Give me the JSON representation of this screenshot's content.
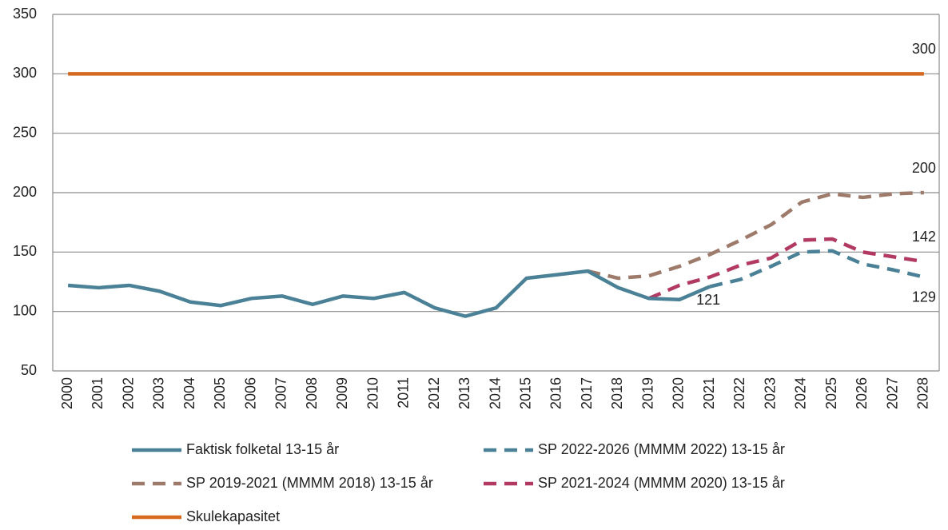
{
  "chart_data": {
    "type": "line",
    "categories": [
      "2000",
      "2001",
      "2002",
      "2003",
      "2004",
      "2005",
      "2006",
      "2007",
      "2008",
      "2009",
      "2010",
      "2011",
      "2012",
      "2013",
      "2014",
      "2015",
      "2016",
      "2017",
      "2018",
      "2019",
      "2020",
      "2021",
      "2022",
      "2023",
      "2024",
      "2025",
      "2026",
      "2027",
      "2028"
    ],
    "ylim": [
      50,
      350
    ],
    "yticks": [
      50,
      100,
      150,
      200,
      250,
      300,
      350
    ],
    "grid": true,
    "series": [
      {
        "name": "Faktisk folketal 13-15 år",
        "color": "#4a8196",
        "dash": false,
        "labeled": [
          21
        ],
        "values": [
          122,
          120,
          122,
          117,
          108,
          105,
          111,
          113,
          106,
          113,
          111,
          116,
          103,
          96,
          103,
          128,
          131,
          134,
          120,
          111,
          110,
          121,
          null,
          null,
          null,
          null,
          null,
          null,
          null
        ]
      },
      {
        "name": "SP 2022-2026 (MMMM 2022) 13-15 år",
        "color": "#4a8196",
        "dash": true,
        "labeled": [
          28
        ],
        "values": [
          null,
          null,
          null,
          null,
          null,
          null,
          null,
          null,
          null,
          null,
          null,
          null,
          null,
          null,
          null,
          null,
          null,
          null,
          null,
          null,
          null,
          121,
          127,
          138,
          150,
          151,
          140,
          135,
          129
        ]
      },
      {
        "name": "SP 2019-2021 (MMMM 2018) 13-15 år",
        "color": "#9e7a6a",
        "dash": true,
        "labeled": [
          28
        ],
        "values": [
          null,
          null,
          null,
          null,
          null,
          null,
          null,
          null,
          null,
          null,
          null,
          null,
          null,
          null,
          null,
          null,
          null,
          134,
          128,
          130,
          138,
          148,
          160,
          173,
          192,
          199,
          196,
          199,
          200
        ]
      },
      {
        "name": "SP 2021-2024 (MMMM 2020) 13-15 år",
        "color": "#b23a62",
        "dash": true,
        "labeled": [
          28
        ],
        "values": [
          null,
          null,
          null,
          null,
          null,
          null,
          null,
          null,
          null,
          null,
          null,
          null,
          null,
          null,
          null,
          null,
          null,
          null,
          null,
          111,
          122,
          129,
          139,
          145,
          160,
          161,
          150,
          146,
          142
        ]
      },
      {
        "name": "Skulekapasitet",
        "color": "#d4691f",
        "dash": false,
        "labeled": [
          28
        ],
        "values": [
          300,
          300,
          300,
          300,
          300,
          300,
          300,
          300,
          300,
          300,
          300,
          300,
          300,
          300,
          300,
          300,
          300,
          300,
          300,
          300,
          300,
          300,
          300,
          300,
          300,
          300,
          300,
          300,
          300
        ]
      }
    ]
  }
}
